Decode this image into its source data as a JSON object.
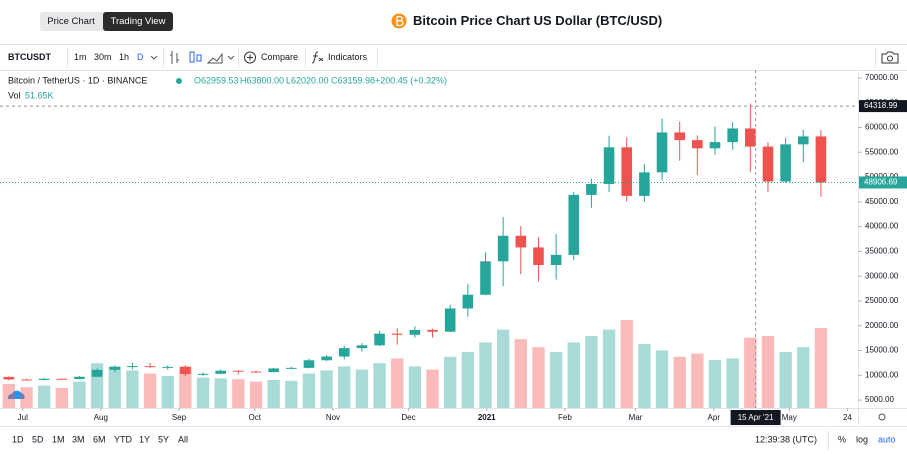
{
  "header": {
    "tabs": [
      "Price Chart",
      "Trading View"
    ],
    "title": "Bitcoin Price Chart US Dollar (BTC/USD)"
  },
  "toolbar": {
    "symbol": "BTCUSDT",
    "intervals": [
      "1m",
      "30m",
      "1h",
      "D"
    ],
    "compare": "Compare",
    "indicators": "Indicators"
  },
  "legend": {
    "symbol": "Bitcoin / TetherUS · 1D · BINANCE",
    "open": "O62959.53",
    "high": "H63800.00",
    "low": "L62020.00",
    "close": "C63159.98",
    "change": "+200.45 (+0.32%)",
    "volume_label": "Vol",
    "volume_value": "51.65K"
  },
  "footer": {
    "ranges": [
      "1D",
      "5D",
      "1M",
      "3M",
      "6M",
      "YTD",
      "1Y",
      "5Y",
      "All"
    ],
    "clock": "12:39:38 (UTC)",
    "options": [
      "%",
      "log",
      "auto"
    ]
  },
  "chart_data": {
    "type": "candlestick",
    "up_color": "#26a69a",
    "down_color": "#ef5350",
    "categories": [
      null,
      null,
      null,
      null,
      null,
      null,
      null,
      null,
      null,
      null,
      null,
      null,
      null,
      null,
      null,
      null,
      null,
      null,
      null,
      null,
      null,
      null,
      null,
      null,
      null,
      null,
      null,
      null,
      null,
      null,
      null,
      null,
      null,
      null,
      null,
      null,
      null,
      null,
      null,
      null,
      null,
      null,
      null,
      null,
      null,
      null,
      null
    ],
    "open": [
      9680,
      9160,
      9070,
      9300,
      9250,
      9700,
      11100,
      11700,
      11850,
      11650,
      11700,
      10250,
      10300,
      10920,
      10750,
      10660,
      11380,
      11500,
      13030,
      13780,
      15480,
      16050,
      18400,
      18180,
      19150,
      18800,
      23480,
      26250,
      33000,
      38150,
      35800,
      32250,
      34300,
      46400,
      48600,
      56000,
      46200,
      50950,
      59000,
      57450,
      55800,
      57050,
      59800,
      56150,
      49100,
      56600,
      58200
    ],
    "high": [
      9780,
      9320,
      9480,
      9340,
      9850,
      11400,
      12000,
      12480,
      12470,
      12000,
      12050,
      10600,
      11180,
      11000,
      10950,
      11500,
      11750,
      13350,
      14100,
      15950,
      16480,
      18950,
      19480,
      19900,
      19420,
      24200,
      28400,
      34800,
      41950,
      40100,
      37850,
      38500,
      47000,
      49700,
      58350,
      58000,
      52650,
      61800,
      61200,
      58400,
      60200,
      61100,
      64850,
      57000,
      57950,
      59600,
      59500
    ],
    "low": [
      8990,
      8950,
      9050,
      9110,
      9180,
      9600,
      10650,
      11200,
      11500,
      11150,
      9880,
      9900,
      10250,
      10150,
      10500,
      10530,
      11200,
      11400,
      12900,
      13200,
      14800,
      15900,
      16200,
      17600,
      17600,
      18700,
      21800,
      26150,
      28000,
      30400,
      28900,
      29300,
      33200,
      43800,
      47000,
      45000,
      45000,
      49300,
      53300,
      50400,
      54500,
      55500,
      51000,
      47000,
      48800,
      53000,
      46000
    ],
    "close": [
      9160,
      9070,
      9300,
      9250,
      9700,
      11100,
      11700,
      11850,
      11650,
      11700,
      10250,
      10300,
      10920,
      10750,
      10660,
      11380,
      11500,
      13030,
      13780,
      15480,
      16050,
      18400,
      18180,
      19150,
      18800,
      23480,
      26250,
      33000,
      38150,
      35800,
      32250,
      34300,
      46400,
      48600,
      56000,
      46200,
      50950,
      59000,
      57450,
      55800,
      57050,
      59800,
      56150,
      49100,
      56600,
      58200,
      48906.69
    ],
    "volume": [
      300,
      260,
      280,
      250,
      330,
      560,
      520,
      470,
      430,
      400,
      520,
      380,
      370,
      360,
      330,
      350,
      340,
      430,
      470,
      520,
      480,
      560,
      620,
      520,
      480,
      640,
      700,
      820,
      980,
      860,
      760,
      700,
      820,
      900,
      980,
      1100,
      800,
      720,
      640,
      680,
      600,
      620,
      880,
      900,
      700,
      760,
      1000
    ],
    "xlim": [
      -0.5,
      48.1
    ],
    "ylim": [
      3400,
      71600
    ],
    "xticks": [
      {
        "value": 0.79,
        "label": "Jul"
      },
      {
        "value": 5.21,
        "label": "Aug"
      },
      {
        "value": 9.64,
        "label": "Sep"
      },
      {
        "value": 13.93,
        "label": "Oct"
      },
      {
        "value": 18.36,
        "label": "Nov"
      },
      {
        "value": 22.64,
        "label": "Dec"
      },
      {
        "value": 27.07,
        "label": "2021"
      },
      {
        "value": 31.5,
        "label": "Feb"
      },
      {
        "value": 35.5,
        "label": "Mar"
      },
      {
        "value": 39.93,
        "label": "Apr"
      },
      {
        "value": 44.21,
        "label": "May"
      },
      {
        "value": 47.5,
        "label": "24"
      }
    ],
    "yticks": [
      {
        "value": 70000,
        "label": "70000.00"
      },
      {
        "value": 65000,
        "label": "65000.00"
      },
      {
        "value": 60000,
        "label": "60000.00"
      },
      {
        "value": 55000,
        "label": "55000.00"
      },
      {
        "value": 50000,
        "label": "50000.00"
      },
      {
        "value": 45000,
        "label": "45000.00"
      },
      {
        "value": 40000,
        "label": "40000.00"
      },
      {
        "value": 35000,
        "label": "35000.00"
      },
      {
        "value": 30000,
        "label": "30000.00"
      },
      {
        "value": 25000,
        "label": "25000.00"
      },
      {
        "value": 20000,
        "label": "20000.00"
      },
      {
        "value": 15000,
        "label": "15000.00"
      },
      {
        "value": 10000,
        "label": "10000.00"
      },
      {
        "value": 5000,
        "label": "5000.00"
      }
    ],
    "crosshair": {
      "price": 64318.99,
      "price_label": "64318.99",
      "x": 42.3,
      "date_label": "15 Apr '21"
    },
    "last_price": {
      "value": 48906.69,
      "label": "48906.69"
    }
  }
}
